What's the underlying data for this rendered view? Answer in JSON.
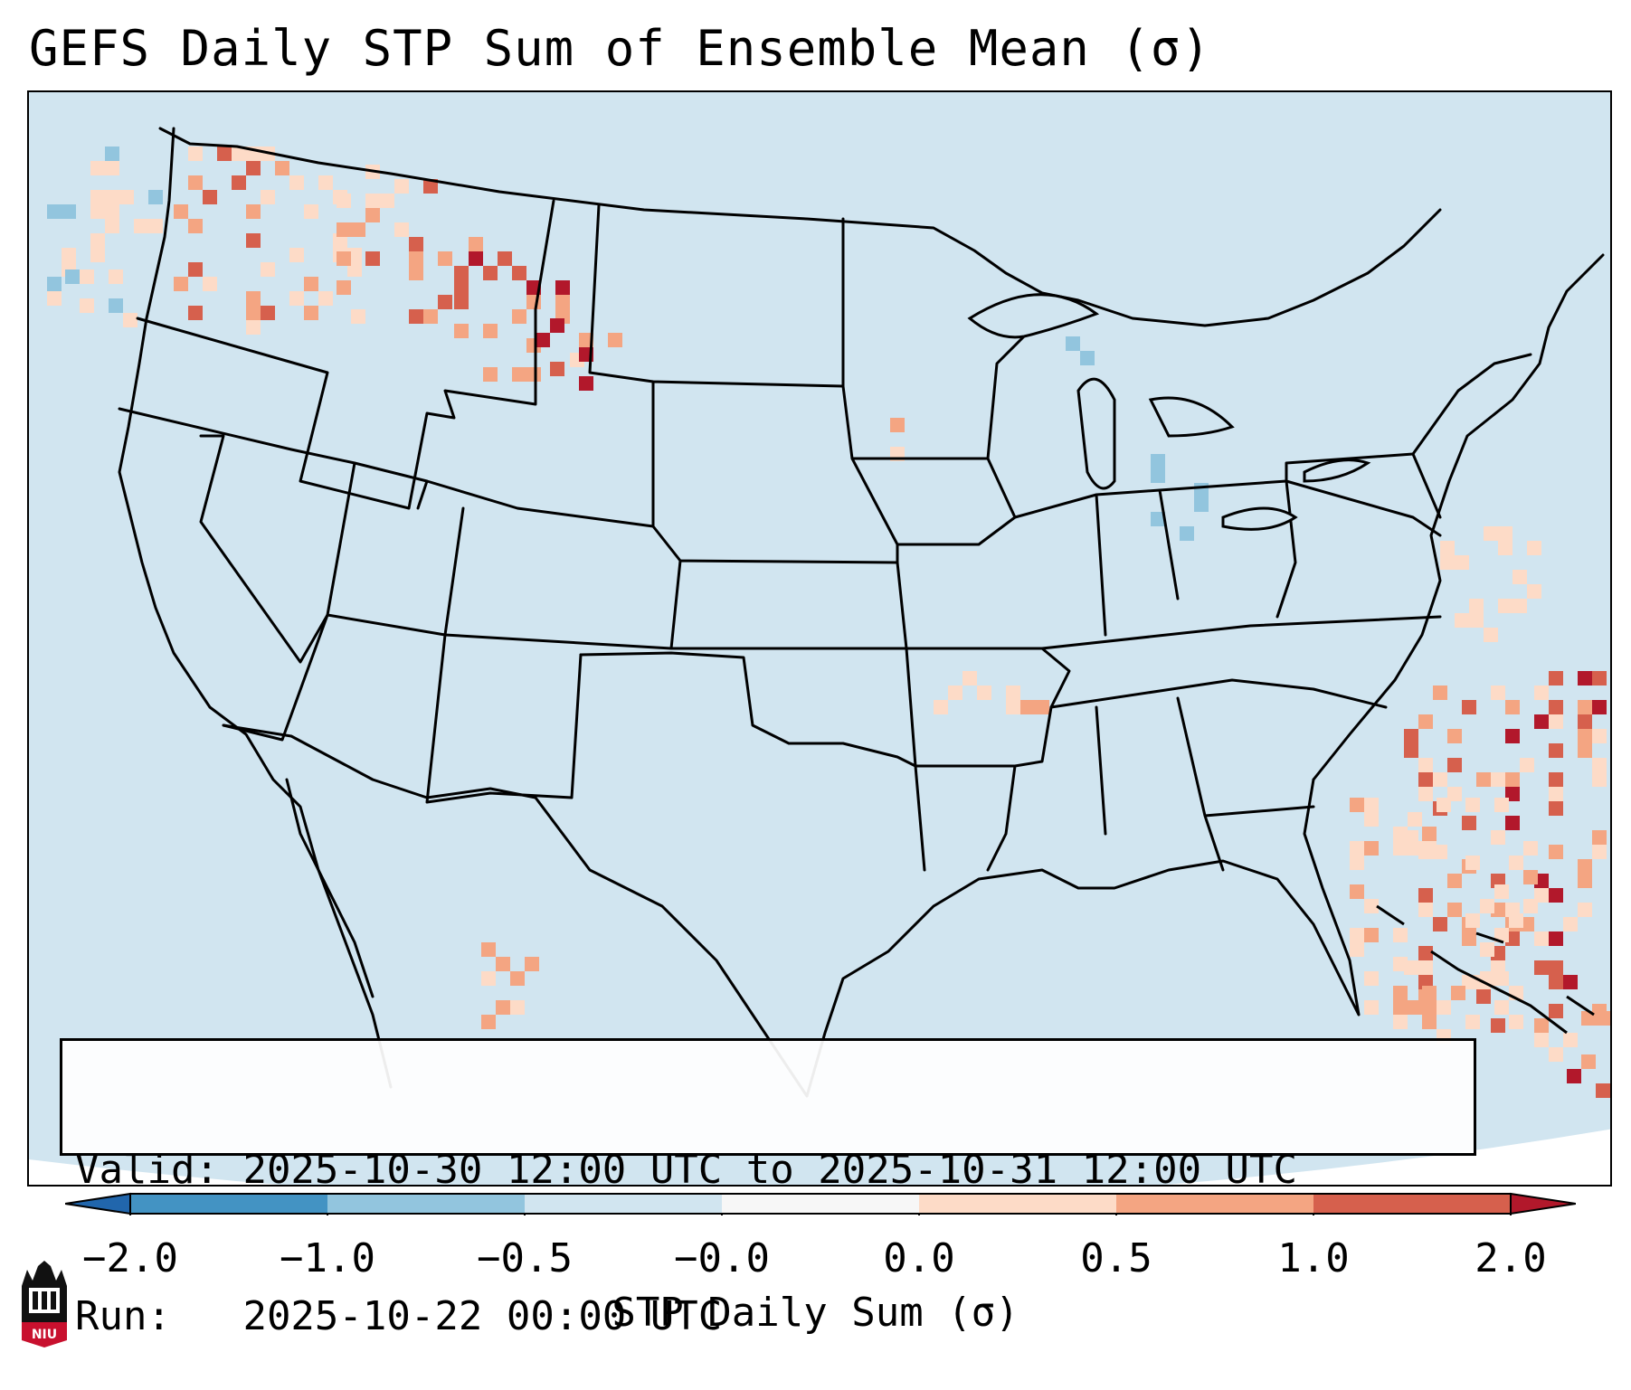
{
  "title": "GEFS Daily STP Sum of Ensemble Mean (σ)",
  "info": {
    "valid_label": "Valid:",
    "valid_text": "2025-10-30 12:00 UTC to 2025-10-31 12:00 UTC",
    "run_label": "Run:",
    "run_text": "2025-10-22 00:00 UTC"
  },
  "colorbar": {
    "label": "STP Daily Sum (σ)",
    "ticks": [
      "−2.0",
      "−1.0",
      "−0.5",
      "−0.0",
      "0.0",
      "0.5",
      "1.0",
      "2.0"
    ],
    "colors": [
      "#2166ac",
      "#4393c3",
      "#92c5de",
      "#d1e5f0",
      "#f7f7f7",
      "#fddbc7",
      "#f4a582",
      "#d6604d",
      "#b2182b"
    ],
    "extend": "both"
  },
  "map": {
    "projection": "CONUS Lambert conformal",
    "background_color": "#d1e5f0",
    "outside_color": "#ffffff",
    "border_color": "#000000"
  },
  "logo": {
    "label": "NIU",
    "primary_color": "#c8102e",
    "secondary_color": "#000000"
  }
}
